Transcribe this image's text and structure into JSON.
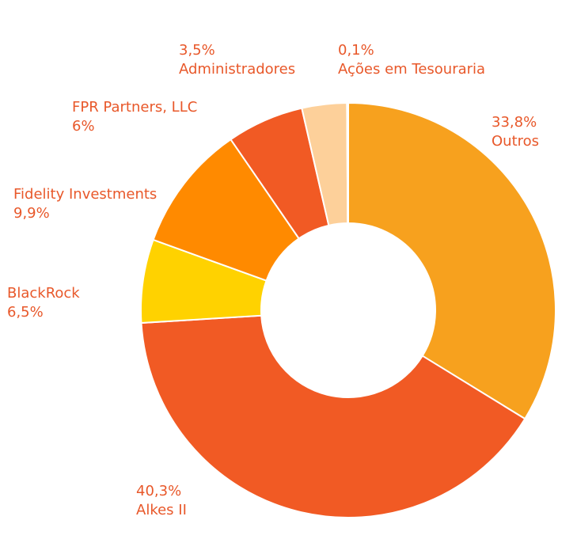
{
  "chart_data": {
    "type": "pie",
    "variant": "donut",
    "direction": "clockwise",
    "start": "top",
    "categories": [
      "Outros",
      "Alkes II",
      "BlackRock",
      "Fidelity Investments",
      "FPR Partners, LLC",
      "Administradores",
      "Ações em Tesouraria"
    ],
    "values": [
      33.8,
      40.3,
      6.5,
      9.9,
      6.0,
      3.5,
      0.1
    ],
    "value_labels": [
      "33,8%",
      "40,3%",
      "6,5%",
      "9,9%",
      "6%",
      "3,5%",
      "0,1%"
    ],
    "colors": [
      "#f7a11e",
      "#f15a24",
      "#ffd200",
      "#ff8a00",
      "#f15a24",
      "#fdd09a",
      "#fde3c4"
    ],
    "label_color": "#e8582a",
    "legend": "none"
  }
}
